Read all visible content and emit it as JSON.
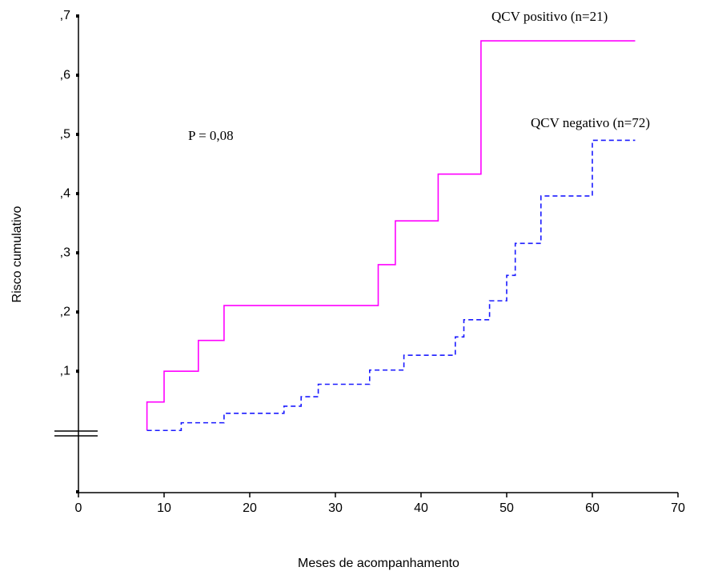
{
  "chart_data": {
    "type": "line",
    "step": "post",
    "x_label": "Meses de acompanhamento",
    "y_label": "Risco cumulativo",
    "annotations": [
      "QCV positivo (n=21)",
      "QCV negativo (n=72)",
      "P = 0,08"
    ],
    "xlim": [
      0,
      70
    ],
    "xticks": [
      0,
      10,
      20,
      30,
      40,
      50,
      60,
      70
    ],
    "ylim": [
      -0.105,
      0.7
    ],
    "yticks": [
      {
        "value": 0.1,
        "label": ",1"
      },
      {
        "value": 0.2,
        "label": ",2"
      },
      {
        "value": 0.3,
        "label": ",3"
      },
      {
        "value": 0.4,
        "label": ",4"
      },
      {
        "value": 0.5,
        "label": ",5"
      },
      {
        "value": 0.6,
        "label": ",6"
      },
      {
        "value": 0.7,
        "label": ",7"
      }
    ],
    "series": [
      {
        "name": "QCV positivo (n=21)",
        "color": "#ff00ff",
        "dash": false,
        "x": [
          8,
          8,
          10,
          14,
          17,
          35,
          37,
          42,
          47,
          65
        ],
        "values": [
          0,
          0.048,
          0.1,
          0.152,
          0.211,
          0.28,
          0.354,
          0.433,
          0.658,
          0.658
        ]
      },
      {
        "name": "QCV negativo (n=72)",
        "color": "#1a1aff",
        "dash": true,
        "x": [
          8,
          12,
          17,
          24,
          26,
          28,
          34,
          38,
          44,
          45,
          48,
          50,
          51,
          54,
          60,
          65
        ],
        "values": [
          0,
          0.013,
          0.029,
          0.041,
          0.057,
          0.078,
          0.102,
          0.127,
          0.158,
          0.187,
          0.219,
          0.262,
          0.316,
          0.396,
          0.49,
          0.49
        ]
      }
    ]
  }
}
